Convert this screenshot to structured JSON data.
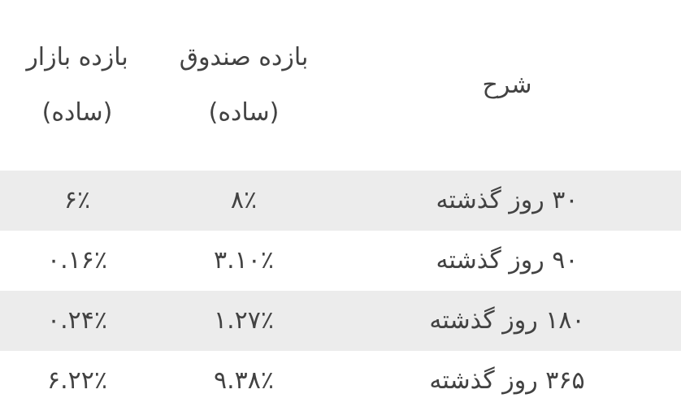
{
  "table": {
    "title_semantic": "fund-returns-table",
    "columns": [
      {
        "id": "desc",
        "label_line1": "شرح",
        "label_line2": ""
      },
      {
        "id": "fund",
        "label_line1": "بازده صندوق",
        "label_line2": "(ساده)"
      },
      {
        "id": "market",
        "label_line1": "بازده بازار",
        "label_line2": "(ساده)"
      }
    ],
    "rows": [
      {
        "desc": "۳۰ روز گذشته",
        "fund": "۸٪",
        "market": "۶٪"
      },
      {
        "desc": "۹۰ روز گذشته",
        "fund": "۳.۱۰٪",
        "market": "۰.۱۶٪"
      },
      {
        "desc": "۱۸۰ روز گذشته",
        "fund": "۱.۲۷٪",
        "market": "۰.۲۴٪"
      },
      {
        "desc": "۳۶۵ روز گذشته",
        "fund": "۹.۳۸٪",
        "market": "۶.۲۲٪"
      }
    ]
  },
  "colors": {
    "background": "#ffffff",
    "stripe": "#ececec",
    "text": "#424242"
  }
}
